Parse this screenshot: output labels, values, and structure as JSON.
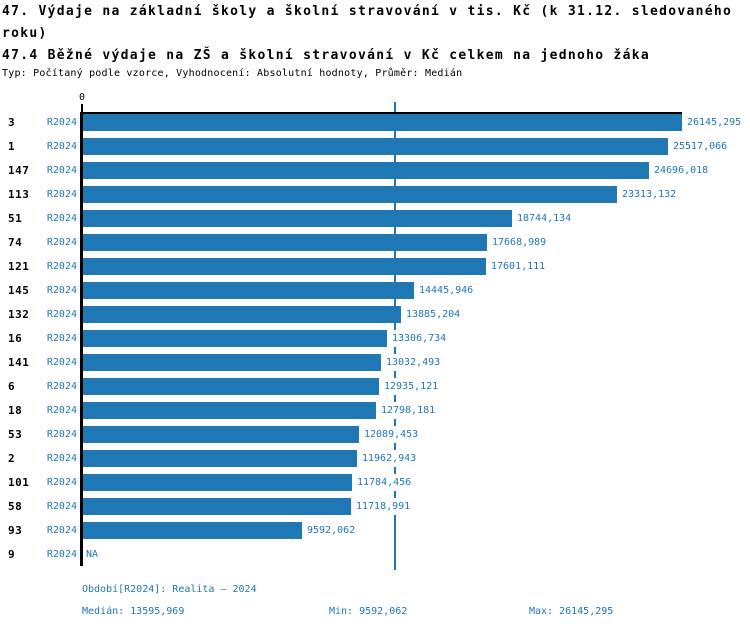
{
  "title": {
    "line1": "47. Výdaje na základní školy a školní stravování v tis. Kč (k 31.12. sledovaného roku)",
    "line2": "47.4 Běžné výdaje na ZŠ a školní stravování v Kč celkem na jednoho žáka",
    "meta": "Typ: Počítaný podle vzorce, Vyhodnocení: Absolutní hodnoty, Průměr: Medián"
  },
  "chart_data": {
    "type": "bar",
    "orientation": "horizontal",
    "axis_zero_label": "0",
    "xlim": [
      0,
      26145.295
    ],
    "max_value": 26145.295,
    "median_value": 13595.969,
    "bar_color": "#1f77b4",
    "text_blue": "#1f77b4",
    "grid": false,
    "rows": [
      {
        "id": "3",
        "period": "R2024",
        "value": 26145.295,
        "label": "26145,295"
      },
      {
        "id": "1",
        "period": "R2024",
        "value": 25517.066,
        "label": "25517,066"
      },
      {
        "id": "147",
        "period": "R2024",
        "value": 24696.018,
        "label": "24696,018"
      },
      {
        "id": "113",
        "period": "R2024",
        "value": 23313.132,
        "label": "23313,132"
      },
      {
        "id": "51",
        "period": "R2024",
        "value": 18744.134,
        "label": "18744,134"
      },
      {
        "id": "74",
        "period": "R2024",
        "value": 17668.989,
        "label": "17668,989"
      },
      {
        "id": "121",
        "period": "R2024",
        "value": 17601.111,
        "label": "17601,111"
      },
      {
        "id": "145",
        "period": "R2024",
        "value": 14445.946,
        "label": "14445,946"
      },
      {
        "id": "132",
        "period": "R2024",
        "value": 13885.204,
        "label": "13885,204"
      },
      {
        "id": "16",
        "period": "R2024",
        "value": 13306.734,
        "label": "13306,734"
      },
      {
        "id": "141",
        "period": "R2024",
        "value": 13032.493,
        "label": "13032,493"
      },
      {
        "id": "6",
        "period": "R2024",
        "value": 12935.121,
        "label": "12935,121"
      },
      {
        "id": "18",
        "period": "R2024",
        "value": 12798.181,
        "label": "12798,181"
      },
      {
        "id": "53",
        "period": "R2024",
        "value": 12089.453,
        "label": "12089,453"
      },
      {
        "id": "2",
        "period": "R2024",
        "value": 11962.943,
        "label": "11962,943"
      },
      {
        "id": "101",
        "period": "R2024",
        "value": 11784.456,
        "label": "11784,456"
      },
      {
        "id": "58",
        "period": "R2024",
        "value": 11718.991,
        "label": "11718,991"
      },
      {
        "id": "93",
        "period": "R2024",
        "value": 9592.062,
        "label": "9592,062"
      },
      {
        "id": "9",
        "period": "R2024",
        "value": null,
        "label": "NA"
      }
    ]
  },
  "footer": {
    "period_info": "Období[R2024]: Realita – 2024",
    "median": "Medián: 13595,969",
    "min": "Min: 9592,062",
    "max": "Max: 26145,295"
  }
}
